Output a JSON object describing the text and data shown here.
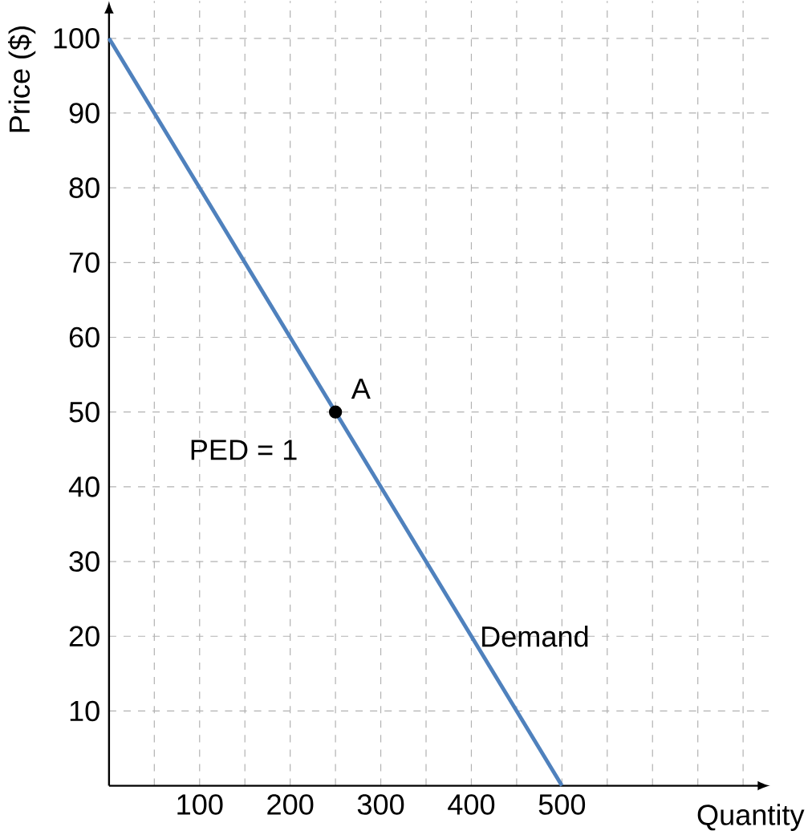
{
  "chart_data": {
    "type": "line",
    "xlabel": "Quantity",
    "ylabel": "Price ($)",
    "xlim": [
      0,
      730
    ],
    "ylim": [
      0,
      105
    ],
    "xticks": [
      {
        "value": 50,
        "label": null
      },
      100,
      {
        "value": 150,
        "label": null
      },
      200,
      {
        "value": 250,
        "label": null
      },
      300,
      {
        "value": 350,
        "label": null
      },
      400,
      {
        "value": 450,
        "label": null
      },
      500,
      {
        "value": 550,
        "label": null
      },
      {
        "value": 600,
        "label": null
      },
      {
        "value": 650,
        "label": null
      },
      {
        "value": 700,
        "label": null
      }
    ],
    "yticks": [
      10,
      20,
      30,
      40,
      50,
      60,
      70,
      80,
      90,
      100
    ],
    "grid": true,
    "series": [
      {
        "name": "Demand",
        "x": [
          0,
          500
        ],
        "values": [
          100,
          0
        ],
        "color": "#4f81bd"
      },
      {
        "type": "scatter",
        "x": [
          250
        ],
        "values": [
          50
        ],
        "color": "#000000",
        "marker": "circle"
      }
    ],
    "annotations": [
      {
        "text": "A",
        "x": 250,
        "y": 50
      },
      {
        "text": "PED = 1",
        "x": 250,
        "y": 50
      }
    ]
  }
}
